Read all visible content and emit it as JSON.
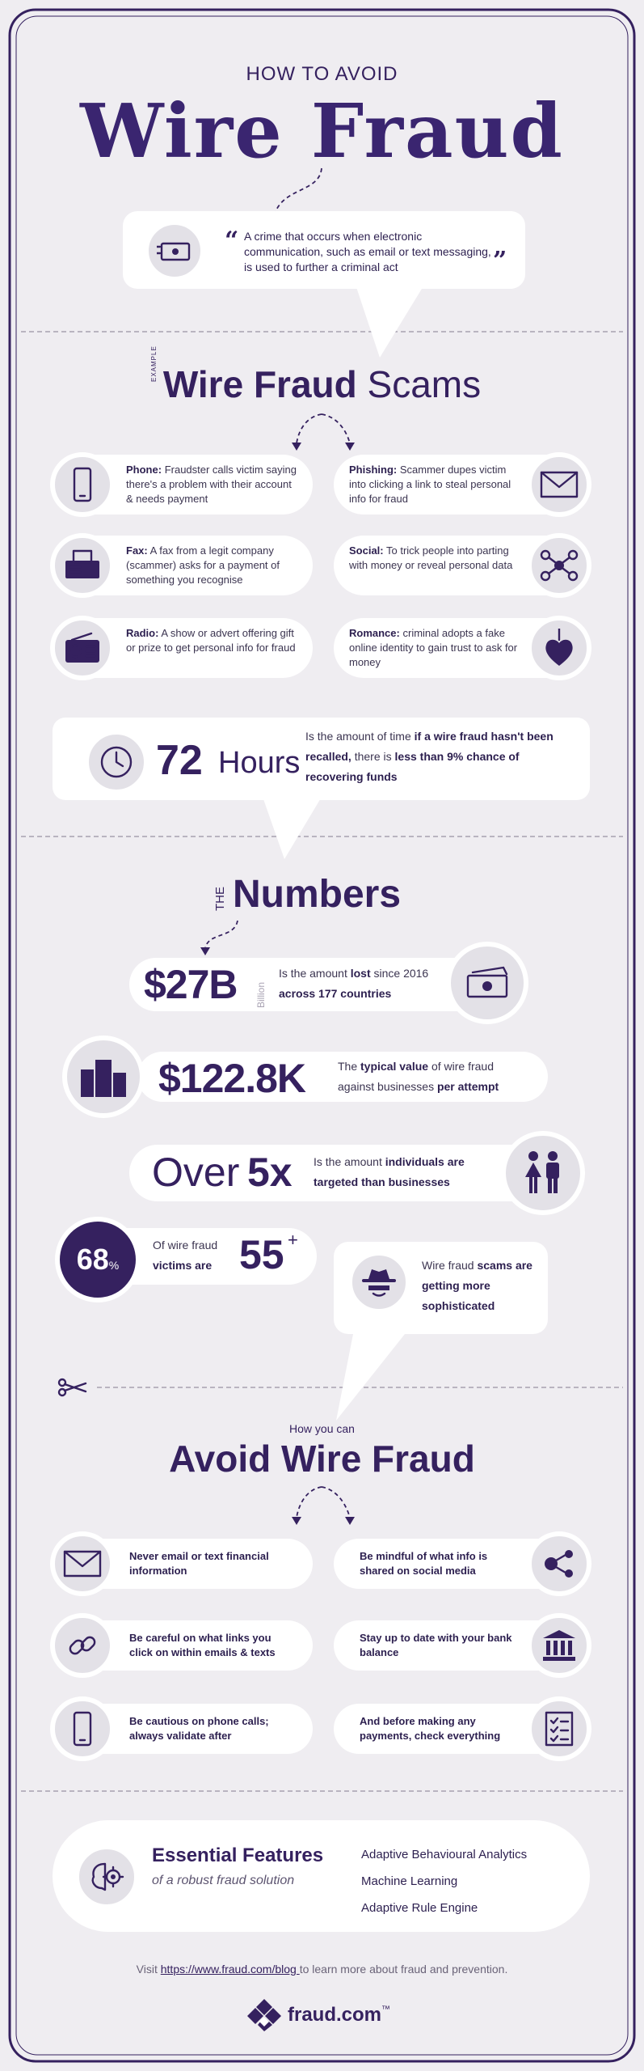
{
  "header": {
    "kicker": "HOW TO AVOID",
    "title": "Wire Fraud"
  },
  "definition": {
    "open_quote": "“",
    "text": "A crime that occurs when electronic communication, such as email or text messaging, is used to further a criminal act",
    "close_quote": "”"
  },
  "scams": {
    "label": "EXAMPLE",
    "title_bold": "Wire Fraud",
    "title_light": "Scams",
    "items": [
      {
        "name": "Phone:",
        "text": "Fraudster calls victim saying there's a problem with their account & needs payment"
      },
      {
        "name": "Phishing:",
        "text": "Scammer dupes victim into clicking a link to steal personal info for fraud"
      },
      {
        "name": "Fax:",
        "text": "A fax from a legit company (scammer) asks for a payment of something you recognise"
      },
      {
        "name": "Social:",
        "text": "To trick people into parting with money or reveal personal data"
      },
      {
        "name": "Radio:",
        "text": "A show or advert offering gift or prize to get personal info for fraud"
      },
      {
        "name": "Romance:",
        "text": "criminal adopts a fake online identity to gain trust to ask for money"
      }
    ]
  },
  "hours": {
    "number": "72",
    "unit": "Hours",
    "segments": [
      {
        "text": "Is the amount of time ",
        "bold": false
      },
      {
        "text": "if a wire fraud hasn't been recalled,",
        "bold": true
      },
      {
        "text": " there is ",
        "bold": false
      },
      {
        "text": "less than 9% chance of recovering funds",
        "bold": true
      }
    ]
  },
  "numbers": {
    "label": "THE",
    "title": "Numbers",
    "stat1": {
      "figure": "$27B",
      "unit": "Billion",
      "segments": [
        {
          "text": "Is the amount ",
          "bold": false
        },
        {
          "text": "lost",
          "bold": true
        },
        {
          "text": " since 2016 ",
          "bold": false
        },
        {
          "text": "across 177 countries",
          "bold": true
        }
      ]
    },
    "stat2": {
      "figure": "$122.8K",
      "segments": [
        {
          "text": "The ",
          "bold": false
        },
        {
          "text": "typical value",
          "bold": true
        },
        {
          "text": " of wire fraud against businesses ",
          "bold": false
        },
        {
          "text": "per attempt",
          "bold": true
        }
      ]
    },
    "stat3": {
      "prefix": "Over",
      "figure": "5x",
      "segments": [
        {
          "text": "Is the amount ",
          "bold": false
        },
        {
          "text": "individuals are targeted than businesses",
          "bold": true
        }
      ]
    },
    "stat4": {
      "figure": "68",
      "unit": "%",
      "segments": [
        {
          "text": "Of wire fraud ",
          "bold": false
        },
        {
          "text": "victims are",
          "bold": true
        }
      ],
      "age": "55",
      "age_suffix": "+"
    },
    "stat5": {
      "segments": [
        {
          "text": "Wire fraud ",
          "bold": false
        },
        {
          "text": "scams are getting more sophisticated",
          "bold": true
        }
      ]
    }
  },
  "avoid": {
    "kicker": "How you can",
    "title": "Avoid Wire Fraud",
    "tips": [
      "Never email or text financial information",
      "Be mindful of what info is shared on social media",
      "Be careful on what links you click on within emails & texts",
      "Stay up to date with your bank balance",
      "Be cautious on phone calls; always validate after",
      "And before making any payments, check everything"
    ]
  },
  "features": {
    "title": "Essential Features",
    "subtitle": "of a robust fraud solution",
    "items": [
      "Adaptive Behavioural Analytics",
      "Machine Learning",
      "Adaptive Rule Engine"
    ]
  },
  "footer": {
    "before": "Visit ",
    "link": "https://www.fraud.com/blog ",
    "after": " to learn more about fraud and prevention.",
    "brand": "fraud.com",
    "trademark": "™"
  }
}
